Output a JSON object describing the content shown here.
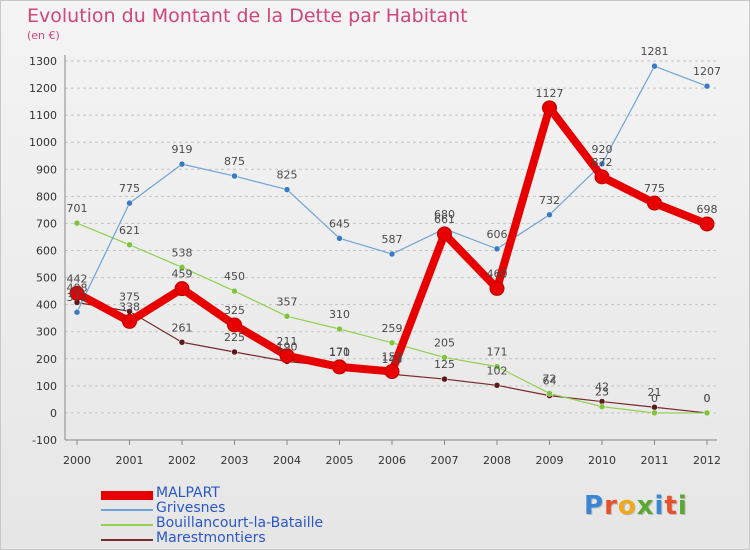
{
  "header": {
    "title": "Evolution du Montant de la Dette par Habitant",
    "unit": "(en €)"
  },
  "logo": {
    "text": "Proxiti",
    "colors": [
      "#3a86d4",
      "#e8502a",
      "#f2a81d",
      "#5aa832",
      "#3a86d4",
      "#e8502a",
      "#5aa832"
    ]
  },
  "chart_data": {
    "type": "line",
    "title": "Evolution du Montant de la Dette par Habitant",
    "ylabel": "(en €)",
    "xlabel": "",
    "x": [
      "2000",
      "2001",
      "2002",
      "2003",
      "2004",
      "2005",
      "2006",
      "2007",
      "2008",
      "2009",
      "2010",
      "2011",
      "2012"
    ],
    "ylim": [
      -100,
      1300
    ],
    "yticks": [
      -100,
      0,
      100,
      200,
      300,
      400,
      500,
      600,
      700,
      800,
      900,
      1000,
      1100,
      1200,
      1300
    ],
    "grid": "dashed horizontal",
    "legend_position": "bottom-left",
    "series": [
      {
        "name": "Marestmontiers",
        "color": "#7a2a2a",
        "values": [
          408,
          375,
          261,
          225,
          190,
          171,
          143,
          125,
          102,
          64,
          42,
          21,
          0
        ]
      },
      {
        "name": "Bouillancourt-la-Bataille",
        "color": "#8fd14f",
        "values": [
          701,
          621,
          538,
          450,
          357,
          310,
          259,
          205,
          171,
          72,
          23,
          0,
          0
        ]
      },
      {
        "name": "Grivesnes",
        "color": "#6fa3d8",
        "values": [
          372,
          775,
          919,
          875,
          825,
          645,
          587,
          680,
          606,
          732,
          920,
          1281,
          1207
        ]
      },
      {
        "name": "MALPART",
        "color": "#e80000",
        "values": [
          442,
          338,
          459,
          325,
          211,
          170,
          153,
          661,
          460,
          1127,
          872,
          775,
          698
        ]
      }
    ],
    "labels": {
      "Marestmontiers": [
        "408",
        "375",
        "261",
        "225",
        "190",
        "171",
        "143",
        "125",
        "102",
        "64",
        "42",
        "21",
        "0"
      ],
      "Bouillancourt-la-Bataille": [
        "701",
        "621",
        "538",
        "450",
        "357",
        "310",
        "259",
        "205",
        "171",
        "72",
        "23",
        "0",
        "0"
      ],
      "Grivesnes": [
        "372",
        "775",
        "919",
        "875",
        "825",
        "645",
        "587",
        "680",
        "606",
        "732",
        "920",
        "1281",
        "1207"
      ],
      "MALPART": [
        "442",
        "338",
        "459",
        "325",
        "211",
        "170",
        "153",
        "661",
        "460",
        "1127",
        "872",
        "775",
        "698"
      ]
    }
  },
  "legend": [
    {
      "name": "MALPART",
      "color": "#e80000"
    },
    {
      "name": "Grivesnes",
      "color": "#6fa3d8"
    },
    {
      "name": "Bouillancourt-la-Bataille",
      "color": "#8fd14f"
    },
    {
      "name": "Marestmontiers",
      "color": "#7a2a2a"
    }
  ]
}
